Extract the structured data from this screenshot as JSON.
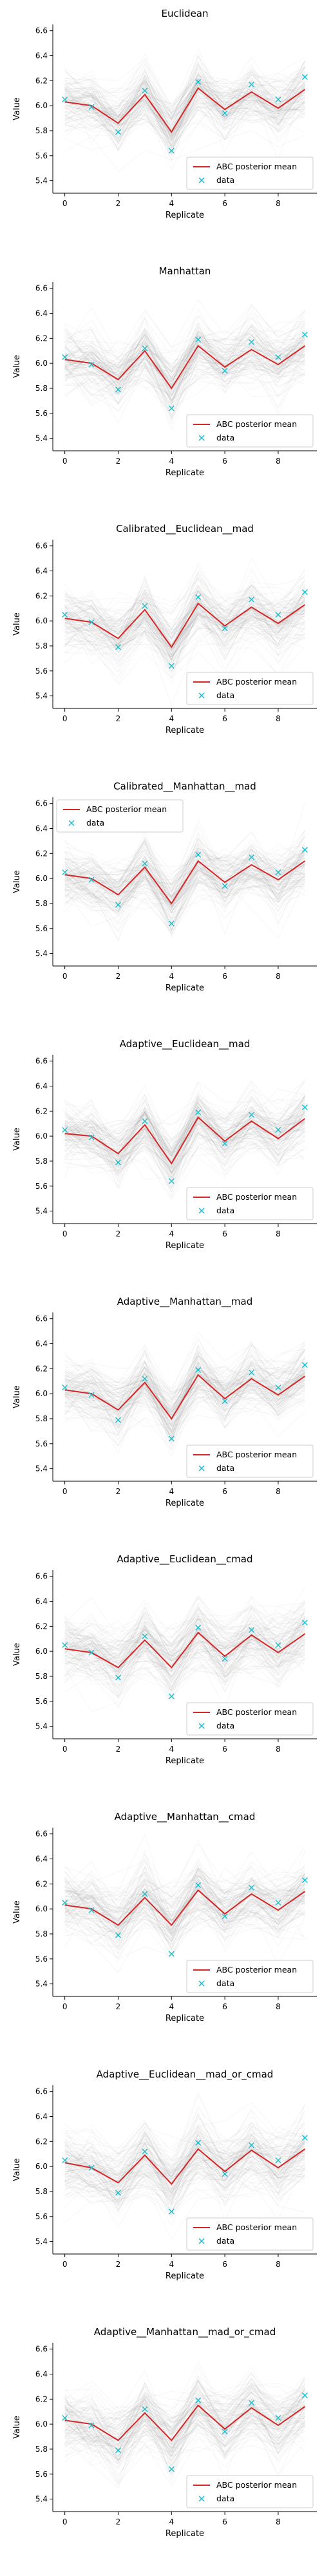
{
  "figure": {
    "colors": {
      "posterior_line": "#d62728",
      "data_marker": "#17becf",
      "trajectories": "#808080",
      "axis": "#000000"
    }
  },
  "chart_data": [
    {
      "type": "line",
      "title": "Euclidean",
      "xlabel": "Replicate",
      "ylabel": "Value",
      "xlim": [
        -0.45,
        9.45
      ],
      "ylim": [
        5.3,
        6.65
      ],
      "xticks": [
        0,
        2,
        4,
        6,
        8
      ],
      "yticks": [
        5.4,
        5.6,
        5.8,
        6.0,
        6.2,
        6.4,
        6.6
      ],
      "legend": {
        "location": "lower-right",
        "entries": [
          "ABC posterior mean",
          "data"
        ]
      },
      "series": [
        {
          "name": "ABC posterior mean",
          "style": "line",
          "x": [
            0,
            1,
            2,
            3,
            4,
            5,
            6,
            7,
            8,
            9
          ],
          "y": [
            6.03,
            6.0,
            5.86,
            6.09,
            5.79,
            6.14,
            5.97,
            6.11,
            5.98,
            6.13
          ]
        },
        {
          "name": "data",
          "style": "marker-x",
          "x": [
            0,
            1,
            2,
            3,
            4,
            5,
            6,
            7,
            8,
            9
          ],
          "y": [
            6.05,
            5.99,
            5.79,
            6.12,
            5.64,
            6.19,
            5.94,
            6.17,
            6.05,
            6.23
          ]
        }
      ],
      "background_trajectories": {
        "count": 120,
        "spread": 0.22
      }
    },
    {
      "type": "line",
      "title": "Manhattan",
      "xlabel": "Replicate",
      "ylabel": "Value",
      "xlim": [
        -0.45,
        9.45
      ],
      "ylim": [
        5.3,
        6.65
      ],
      "xticks": [
        0,
        2,
        4,
        6,
        8
      ],
      "yticks": [
        5.4,
        5.6,
        5.8,
        6.0,
        6.2,
        6.4,
        6.6
      ],
      "legend": {
        "location": "lower-right",
        "entries": [
          "ABC posterior mean",
          "data"
        ]
      },
      "series": [
        {
          "name": "ABC posterior mean",
          "style": "line",
          "x": [
            0,
            1,
            2,
            3,
            4,
            5,
            6,
            7,
            8,
            9
          ],
          "y": [
            6.03,
            6.0,
            5.87,
            6.1,
            5.8,
            6.14,
            5.97,
            6.11,
            5.99,
            6.14
          ]
        },
        {
          "name": "data",
          "style": "marker-x",
          "x": [
            0,
            1,
            2,
            3,
            4,
            5,
            6,
            7,
            8,
            9
          ],
          "y": [
            6.05,
            5.99,
            5.79,
            6.12,
            5.64,
            6.19,
            5.94,
            6.17,
            6.05,
            6.23
          ]
        }
      ],
      "background_trajectories": {
        "count": 120,
        "spread": 0.22
      }
    },
    {
      "type": "line",
      "title": "Calibrated__Euclidean__mad",
      "xlabel": "Replicate",
      "ylabel": "Value",
      "xlim": [
        -0.45,
        9.45
      ],
      "ylim": [
        5.3,
        6.65
      ],
      "xticks": [
        0,
        2,
        4,
        6,
        8
      ],
      "yticks": [
        5.4,
        5.6,
        5.8,
        6.0,
        6.2,
        6.4,
        6.6
      ],
      "legend": {
        "location": "lower-right",
        "entries": [
          "ABC posterior mean",
          "data"
        ]
      },
      "series": [
        {
          "name": "ABC posterior mean",
          "style": "line",
          "x": [
            0,
            1,
            2,
            3,
            4,
            5,
            6,
            7,
            8,
            9
          ],
          "y": [
            6.02,
            5.99,
            5.86,
            6.09,
            5.79,
            6.14,
            5.96,
            6.11,
            5.98,
            6.13
          ]
        },
        {
          "name": "data",
          "style": "marker-x",
          "x": [
            0,
            1,
            2,
            3,
            4,
            5,
            6,
            7,
            8,
            9
          ],
          "y": [
            6.05,
            5.99,
            5.79,
            6.12,
            5.64,
            6.19,
            5.94,
            6.17,
            6.05,
            6.23
          ]
        }
      ],
      "background_trajectories": {
        "count": 120,
        "spread": 0.22
      }
    },
    {
      "type": "line",
      "title": "Calibrated__Manhattan__mad",
      "xlabel": "Replicate",
      "ylabel": "Value",
      "xlim": [
        -0.45,
        9.45
      ],
      "ylim": [
        5.3,
        6.65
      ],
      "xticks": [
        0,
        2,
        4,
        6,
        8
      ],
      "yticks": [
        5.4,
        5.6,
        5.8,
        6.0,
        6.2,
        6.4,
        6.6
      ],
      "legend": {
        "location": "upper-left",
        "entries": [
          "ABC posterior mean",
          "data"
        ]
      },
      "series": [
        {
          "name": "ABC posterior mean",
          "style": "line",
          "x": [
            0,
            1,
            2,
            3,
            4,
            5,
            6,
            7,
            8,
            9
          ],
          "y": [
            6.03,
            6.0,
            5.87,
            6.09,
            5.8,
            6.14,
            5.97,
            6.11,
            5.99,
            6.14
          ]
        },
        {
          "name": "data",
          "style": "marker-x",
          "x": [
            0,
            1,
            2,
            3,
            4,
            5,
            6,
            7,
            8,
            9
          ],
          "y": [
            6.05,
            5.99,
            5.79,
            6.12,
            5.64,
            6.19,
            5.94,
            6.17,
            6.05,
            6.23
          ]
        }
      ],
      "background_trajectories": {
        "count": 120,
        "spread": 0.22
      }
    },
    {
      "type": "line",
      "title": "Adaptive__Euclidean__mad",
      "xlabel": "Replicate",
      "ylabel": "Value",
      "xlim": [
        -0.45,
        9.45
      ],
      "ylim": [
        5.3,
        6.65
      ],
      "xticks": [
        0,
        2,
        4,
        6,
        8
      ],
      "yticks": [
        5.4,
        5.6,
        5.8,
        6.0,
        6.2,
        6.4,
        6.6
      ],
      "legend": {
        "location": "lower-right",
        "entries": [
          "ABC posterior mean",
          "data"
        ]
      },
      "series": [
        {
          "name": "ABC posterior mean",
          "style": "line",
          "x": [
            0,
            1,
            2,
            3,
            4,
            5,
            6,
            7,
            8,
            9
          ],
          "y": [
            6.02,
            6.0,
            5.86,
            6.09,
            5.78,
            6.15,
            5.96,
            6.12,
            5.98,
            6.14
          ]
        },
        {
          "name": "data",
          "style": "marker-x",
          "x": [
            0,
            1,
            2,
            3,
            4,
            5,
            6,
            7,
            8,
            9
          ],
          "y": [
            6.05,
            5.99,
            5.79,
            6.12,
            5.64,
            6.19,
            5.94,
            6.17,
            6.05,
            6.23
          ]
        }
      ],
      "background_trajectories": {
        "count": 120,
        "spread": 0.22
      }
    },
    {
      "type": "line",
      "title": "Adaptive__Manhattan__mad",
      "xlabel": "Replicate",
      "ylabel": "Value",
      "xlim": [
        -0.45,
        9.45
      ],
      "ylim": [
        5.3,
        6.65
      ],
      "xticks": [
        0,
        2,
        4,
        6,
        8
      ],
      "yticks": [
        5.4,
        5.6,
        5.8,
        6.0,
        6.2,
        6.4,
        6.6
      ],
      "legend": {
        "location": "lower-right",
        "entries": [
          "ABC posterior mean",
          "data"
        ]
      },
      "series": [
        {
          "name": "ABC posterior mean",
          "style": "line",
          "x": [
            0,
            1,
            2,
            3,
            4,
            5,
            6,
            7,
            8,
            9
          ],
          "y": [
            6.03,
            6.0,
            5.87,
            6.09,
            5.8,
            6.15,
            5.96,
            6.12,
            5.99,
            6.14
          ]
        },
        {
          "name": "data",
          "style": "marker-x",
          "x": [
            0,
            1,
            2,
            3,
            4,
            5,
            6,
            7,
            8,
            9
          ],
          "y": [
            6.05,
            5.99,
            5.79,
            6.12,
            5.64,
            6.19,
            5.94,
            6.17,
            6.05,
            6.23
          ]
        }
      ],
      "background_trajectories": {
        "count": 120,
        "spread": 0.22
      }
    },
    {
      "type": "line",
      "title": "Adaptive__Euclidean__cmad",
      "xlabel": "Replicate",
      "ylabel": "Value",
      "xlim": [
        -0.45,
        9.45
      ],
      "ylim": [
        5.3,
        6.65
      ],
      "xticks": [
        0,
        2,
        4,
        6,
        8
      ],
      "yticks": [
        5.4,
        5.6,
        5.8,
        6.0,
        6.2,
        6.4,
        6.6
      ],
      "legend": {
        "location": "lower-right",
        "entries": [
          "ABC posterior mean",
          "data"
        ]
      },
      "series": [
        {
          "name": "ABC posterior mean",
          "style": "line",
          "x": [
            0,
            1,
            2,
            3,
            4,
            5,
            6,
            7,
            8,
            9
          ],
          "y": [
            6.02,
            5.99,
            5.87,
            6.09,
            5.87,
            6.15,
            5.96,
            6.13,
            5.99,
            6.14
          ]
        },
        {
          "name": "data",
          "style": "marker-x",
          "x": [
            0,
            1,
            2,
            3,
            4,
            5,
            6,
            7,
            8,
            9
          ],
          "y": [
            6.05,
            5.99,
            5.79,
            6.12,
            5.64,
            6.19,
            5.94,
            6.17,
            6.05,
            6.23
          ]
        }
      ],
      "background_trajectories": {
        "count": 120,
        "spread": 0.24
      }
    },
    {
      "type": "line",
      "title": "Adaptive__Manhattan__cmad",
      "xlabel": "Replicate",
      "ylabel": "Value",
      "xlim": [
        -0.45,
        9.45
      ],
      "ylim": [
        5.3,
        6.65
      ],
      "xticks": [
        0,
        2,
        4,
        6,
        8
      ],
      "yticks": [
        5.4,
        5.6,
        5.8,
        6.0,
        6.2,
        6.4,
        6.6
      ],
      "legend": {
        "location": "lower-right",
        "entries": [
          "ABC posterior mean",
          "data"
        ]
      },
      "series": [
        {
          "name": "ABC posterior mean",
          "style": "line",
          "x": [
            0,
            1,
            2,
            3,
            4,
            5,
            6,
            7,
            8,
            9
          ],
          "y": [
            6.03,
            6.0,
            5.87,
            6.09,
            5.87,
            6.15,
            5.96,
            6.12,
            5.99,
            6.14
          ]
        },
        {
          "name": "data",
          "style": "marker-x",
          "x": [
            0,
            1,
            2,
            3,
            4,
            5,
            6,
            7,
            8,
            9
          ],
          "y": [
            6.05,
            5.99,
            5.79,
            6.12,
            5.64,
            6.19,
            5.94,
            6.17,
            6.05,
            6.23
          ]
        }
      ],
      "background_trajectories": {
        "count": 120,
        "spread": 0.24
      }
    },
    {
      "type": "line",
      "title": "Adaptive__Euclidean__mad_or_cmad",
      "xlabel": "Replicate",
      "ylabel": "Value",
      "xlim": [
        -0.45,
        9.45
      ],
      "ylim": [
        5.3,
        6.65
      ],
      "xticks": [
        0,
        2,
        4,
        6,
        8
      ],
      "yticks": [
        5.4,
        5.6,
        5.8,
        6.0,
        6.2,
        6.4,
        6.6
      ],
      "legend": {
        "location": "lower-right",
        "entries": [
          "ABC posterior mean",
          "data"
        ]
      },
      "series": [
        {
          "name": "ABC posterior mean",
          "style": "line",
          "x": [
            0,
            1,
            2,
            3,
            4,
            5,
            6,
            7,
            8,
            9
          ],
          "y": [
            6.03,
            5.99,
            5.87,
            6.09,
            5.86,
            6.14,
            5.96,
            6.13,
            5.99,
            6.14
          ]
        },
        {
          "name": "data",
          "style": "marker-x",
          "x": [
            0,
            1,
            2,
            3,
            4,
            5,
            6,
            7,
            8,
            9
          ],
          "y": [
            6.05,
            5.99,
            5.79,
            6.12,
            5.64,
            6.19,
            5.94,
            6.17,
            6.05,
            6.23
          ]
        }
      ],
      "background_trajectories": {
        "count": 120,
        "spread": 0.24
      }
    },
    {
      "type": "line",
      "title": "Adaptive__Manhattan__mad_or_cmad",
      "xlabel": "Replicate",
      "ylabel": "Value",
      "xlim": [
        -0.45,
        9.45
      ],
      "ylim": [
        5.3,
        6.65
      ],
      "xticks": [
        0,
        2,
        4,
        6,
        8
      ],
      "yticks": [
        5.4,
        5.6,
        5.8,
        6.0,
        6.2,
        6.4,
        6.6
      ],
      "legend": {
        "location": "lower-right",
        "entries": [
          "ABC posterior mean",
          "data"
        ]
      },
      "series": [
        {
          "name": "ABC posterior mean",
          "style": "line",
          "x": [
            0,
            1,
            2,
            3,
            4,
            5,
            6,
            7,
            8,
            9
          ],
          "y": [
            6.03,
            6.0,
            5.87,
            6.09,
            5.87,
            6.15,
            5.96,
            6.13,
            5.99,
            6.14
          ]
        },
        {
          "name": "data",
          "style": "marker-x",
          "x": [
            0,
            1,
            2,
            3,
            4,
            5,
            6,
            7,
            8,
            9
          ],
          "y": [
            6.05,
            5.99,
            5.79,
            6.12,
            5.64,
            6.19,
            5.94,
            6.17,
            6.05,
            6.23
          ]
        }
      ],
      "background_trajectories": {
        "count": 120,
        "spread": 0.24
      }
    }
  ]
}
